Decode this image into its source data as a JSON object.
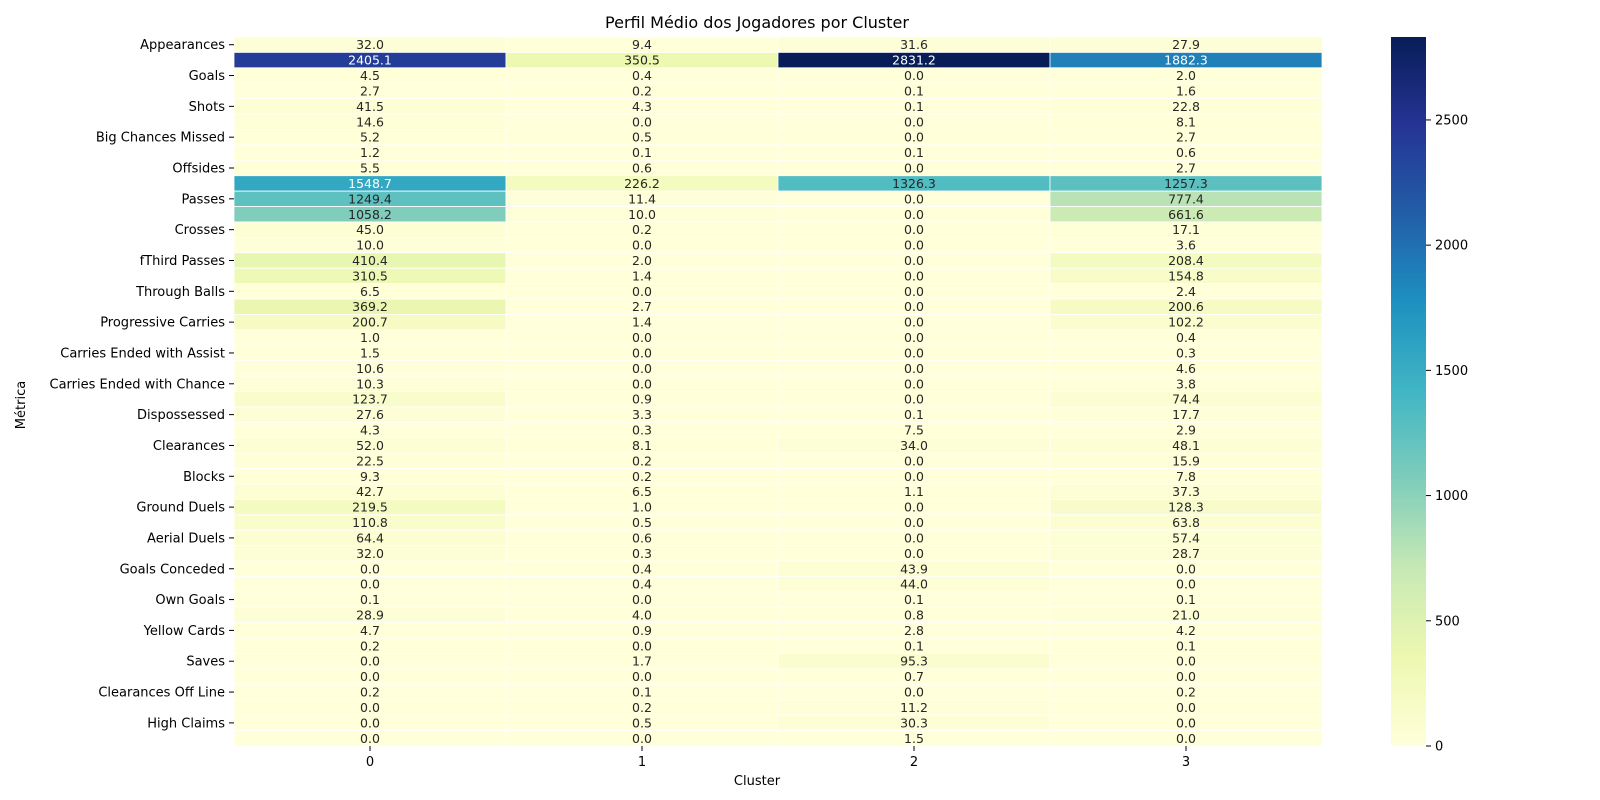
{
  "chart_data": {
    "type": "heatmap",
    "title": "Perfil Médio dos Jogadores por Cluster",
    "xlabel": "Cluster",
    "ylabel": "Métrica",
    "x_categories": [
      "0",
      "1",
      "2",
      "3"
    ],
    "y_tick_labels": [
      "Appearances",
      "Goals",
      "Shots",
      "Big Chances Missed",
      "Offsides",
      "Passes",
      "Crosses",
      "fThird Passes",
      "Through Balls",
      "Progressive Carries",
      "Carries Ended with Assist",
      "Carries Ended with Chance",
      "Dispossessed",
      "Clearances",
      "Blocks",
      "Ground Duels",
      "Aerial Duels",
      "Goals Conceded",
      "Own Goals",
      "Yellow Cards",
      "Saves",
      "Clearances Off Line",
      "High Claims"
    ],
    "y_tick_rows": [
      0,
      2,
      4,
      6,
      8,
      10,
      12,
      14,
      16,
      18,
      20,
      22,
      24,
      26,
      28,
      30,
      32,
      34,
      36,
      38,
      40,
      42,
      44
    ],
    "values": [
      [
        32.0,
        9.4,
        31.6,
        27.9
      ],
      [
        2405.1,
        350.5,
        2831.2,
        1882.3
      ],
      [
        4.5,
        0.4,
        0.0,
        2.0
      ],
      [
        2.7,
        0.2,
        0.1,
        1.6
      ],
      [
        41.5,
        4.3,
        0.1,
        22.8
      ],
      [
        14.6,
        0.0,
        0.0,
        8.1
      ],
      [
        5.2,
        0.5,
        0.0,
        2.7
      ],
      [
        1.2,
        0.1,
        0.1,
        0.6
      ],
      [
        5.5,
        0.6,
        0.0,
        2.7
      ],
      [
        1548.7,
        226.2,
        1326.3,
        1257.3
      ],
      [
        1249.4,
        11.4,
        0.0,
        777.4
      ],
      [
        1058.2,
        10.0,
        0.0,
        661.6
      ],
      [
        45.0,
        0.2,
        0.0,
        17.1
      ],
      [
        10.0,
        0.0,
        0.0,
        3.6
      ],
      [
        410.4,
        2.0,
        0.0,
        208.4
      ],
      [
        310.5,
        1.4,
        0.0,
        154.8
      ],
      [
        6.5,
        0.0,
        0.0,
        2.4
      ],
      [
        369.2,
        2.7,
        0.0,
        200.6
      ],
      [
        200.7,
        1.4,
        0.0,
        102.2
      ],
      [
        1.0,
        0.0,
        0.0,
        0.4
      ],
      [
        1.5,
        0.0,
        0.0,
        0.3
      ],
      [
        10.6,
        0.0,
        0.0,
        4.6
      ],
      [
        10.3,
        0.0,
        0.0,
        3.8
      ],
      [
        123.7,
        0.9,
        0.0,
        74.4
      ],
      [
        27.6,
        3.3,
        0.1,
        17.7
      ],
      [
        4.3,
        0.3,
        7.5,
        2.9
      ],
      [
        52.0,
        8.1,
        34.0,
        48.1
      ],
      [
        22.5,
        0.2,
        0.0,
        15.9
      ],
      [
        9.3,
        0.2,
        0.0,
        7.8
      ],
      [
        42.7,
        6.5,
        1.1,
        37.3
      ],
      [
        219.5,
        1.0,
        0.0,
        128.3
      ],
      [
        110.8,
        0.5,
        0.0,
        63.8
      ],
      [
        64.4,
        0.6,
        0.0,
        57.4
      ],
      [
        32.0,
        0.3,
        0.0,
        28.7
      ],
      [
        0.0,
        0.4,
        43.9,
        0.0
      ],
      [
        0.0,
        0.4,
        44.0,
        0.0
      ],
      [
        0.1,
        0.0,
        0.1,
        0.1
      ],
      [
        28.9,
        4.0,
        0.8,
        21.0
      ],
      [
        4.7,
        0.9,
        2.8,
        4.2
      ],
      [
        0.2,
        0.0,
        0.1,
        0.1
      ],
      [
        0.0,
        1.7,
        95.3,
        0.0
      ],
      [
        0.0,
        0.0,
        0.7,
        0.0
      ],
      [
        0.2,
        0.1,
        0.0,
        0.2
      ],
      [
        0.0,
        0.2,
        11.2,
        0.0
      ],
      [
        0.0,
        0.5,
        30.3,
        0.0
      ],
      [
        0.0,
        0.0,
        1.5,
        0.0
      ]
    ],
    "value_range": [
      0,
      2831.2
    ],
    "colormap": "YlGnBu",
    "colorbar_ticks": [
      0,
      500,
      1000,
      1500,
      2000,
      2500
    ],
    "annotated": true,
    "grid": false,
    "cell_separator_color": "#ffffff"
  }
}
